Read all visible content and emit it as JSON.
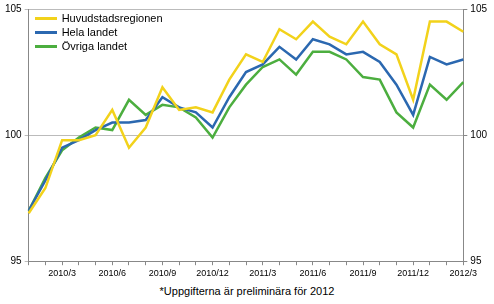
{
  "chart_data": {
    "type": "line",
    "footnote": "*Uppgifterna är preliminära för 2012",
    "categories": [
      null,
      null,
      "2010/3",
      null,
      null,
      "2010/6",
      null,
      null,
      "2010/9",
      null,
      null,
      "2010/12",
      null,
      null,
      "2011/3",
      null,
      null,
      "2011/6",
      null,
      null,
      "2011/9",
      null,
      null,
      "2011/12",
      null,
      null,
      "2012/3"
    ],
    "series": [
      {
        "name": "Huvudstadsregionen",
        "color": "#f2d21b",
        "values": [
          96.9,
          97.9,
          99.8,
          99.8,
          100.0,
          101.0,
          99.5,
          100.3,
          101.9,
          101.0,
          101.1,
          100.9,
          102.2,
          103.2,
          102.9,
          104.2,
          103.8,
          104.5,
          103.9,
          103.6,
          104.5,
          103.6,
          103.2,
          101.4,
          104.5,
          104.5,
          104.1
        ]
      },
      {
        "name": "Hela landet",
        "color": "#2b68b0",
        "values": [
          97.0,
          98.2,
          99.5,
          99.8,
          100.2,
          100.5,
          100.5,
          100.6,
          101.5,
          101.1,
          100.9,
          100.3,
          101.5,
          102.5,
          102.8,
          103.5,
          103.0,
          103.8,
          103.6,
          103.2,
          103.3,
          102.9,
          102.0,
          100.8,
          103.1,
          102.8,
          103.0
        ]
      },
      {
        "name": "Övriga landet",
        "color": "#4cae3f",
        "values": [
          97.0,
          98.3,
          99.4,
          99.9,
          100.3,
          100.2,
          101.4,
          100.8,
          101.2,
          101.1,
          100.7,
          99.9,
          101.1,
          102.0,
          102.7,
          103.0,
          102.4,
          103.3,
          103.3,
          103.0,
          102.3,
          102.2,
          100.9,
          100.3,
          102.0,
          101.4,
          102.1
        ]
      }
    ],
    "ylim": [
      95,
      105
    ],
    "yticks": [
      95,
      100,
      105
    ],
    "y2lim": [
      95,
      105
    ],
    "y2ticks": [
      95,
      100,
      105
    ],
    "grid": true,
    "legend": "upper left"
  }
}
